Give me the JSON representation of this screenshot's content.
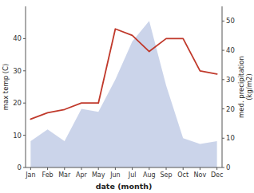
{
  "chart_data": {
    "type": "line",
    "xlabel": "date (month)",
    "ylabel": "max temp (C)",
    "y2label": "med. precipitation\n(kg/m2)",
    "categories": [
      "Jan",
      "Feb",
      "Mar",
      "Apr",
      "May",
      "Jun",
      "Jul",
      "Aug",
      "Sep",
      "Oct",
      "Nov",
      "Dec"
    ],
    "series": [
      {
        "type": "line",
        "color": "#c0392b",
        "values": [
          15,
          17,
          18,
          20,
          20,
          43,
          41,
          36,
          40,
          40,
          30,
          29
        ]
      },
      {
        "type": "area",
        "color": "#c5cfe8",
        "axis": "y2",
        "values": [
          9,
          13,
          9,
          20,
          19,
          30,
          43,
          50,
          28,
          10,
          8,
          9
        ]
      }
    ],
    "ylim": [
      0,
      50
    ],
    "yticks": [
      0,
      10,
      20,
      30,
      40
    ],
    "y2lim": [
      0,
      55
    ],
    "y2ticks": [
      0,
      10,
      20,
      30,
      40,
      50
    ],
    "grid": false
  }
}
